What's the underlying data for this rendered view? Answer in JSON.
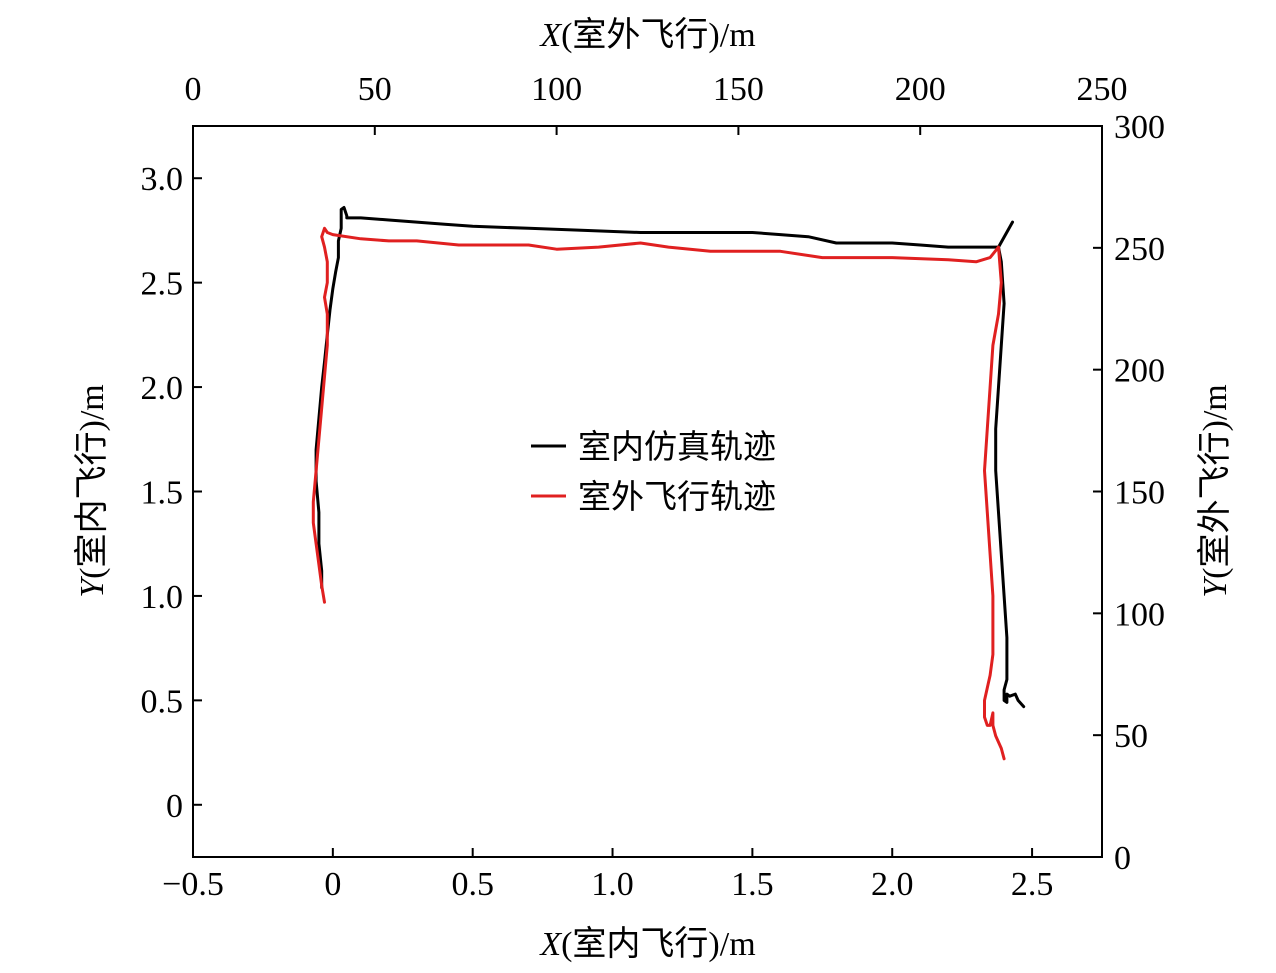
{
  "chart_data": {
    "type": "line",
    "axes": {
      "bottom": {
        "label_var": "X",
        "label_rest": "(室内飞行)/m",
        "range": [
          -0.5,
          2.75
        ],
        "ticks": [
          -0.5,
          0,
          0.5,
          1.0,
          1.5,
          2.0,
          2.5
        ],
        "tick_labels": [
          "−0.5",
          "0",
          "0.5",
          "1.0",
          "1.5",
          "2.0",
          "2.5"
        ]
      },
      "left": {
        "label_var": "Y",
        "label_rest": "(室内飞行)/m",
        "range": [
          -0.25,
          3.25
        ],
        "ticks": [
          0,
          0.5,
          1.0,
          1.5,
          2.0,
          2.5,
          3.0
        ],
        "tick_labels": [
          "0",
          "0.5",
          "1.0",
          "1.5",
          "2.0",
          "2.5",
          "3.0"
        ]
      },
      "top": {
        "label_var": "X",
        "label_rest": "(室外飞行)/m",
        "range": [
          0,
          250
        ],
        "ticks": [
          0,
          50,
          100,
          150,
          200,
          250
        ],
        "tick_labels": [
          "0",
          "50",
          "100",
          "150",
          "200",
          "250"
        ]
      },
      "right": {
        "label_var": "Y",
        "label_rest": "(室外飞行)/m",
        "range": [
          0,
          300
        ],
        "ticks": [
          0,
          50,
          100,
          150,
          200,
          250,
          300
        ],
        "tick_labels": [
          "0",
          "50",
          "100",
          "150",
          "200",
          "250",
          "300"
        ]
      }
    },
    "legend_position": "center",
    "grid": false,
    "series": [
      {
        "name": "室内仿真轨迹",
        "color": "#000000",
        "axes": "bottom-left",
        "x": [
          -0.04,
          -0.04,
          -0.05,
          -0.05,
          -0.06,
          -0.06,
          -0.05,
          -0.04,
          -0.03,
          -0.02,
          -0.01,
          0.0,
          0.01,
          0.02,
          0.02,
          0.03,
          0.03,
          0.03,
          0.04,
          0.05,
          0.05,
          0.1,
          0.2,
          0.3,
          0.4,
          0.5,
          0.7,
          0.9,
          1.1,
          1.3,
          1.5,
          1.6,
          1.7,
          1.8,
          2.0,
          2.1,
          2.2,
          2.3,
          2.38,
          2.43,
          2.38,
          2.39,
          2.4,
          2.39,
          2.38,
          2.37,
          2.37,
          2.38,
          2.39,
          2.4,
          2.41,
          2.41,
          2.41,
          2.4,
          2.4,
          2.4,
          2.41,
          2.41,
          2.42,
          2.44,
          2.45,
          2.47
        ],
        "y": [
          1.04,
          1.12,
          1.25,
          1.4,
          1.55,
          1.7,
          1.85,
          2.0,
          2.12,
          2.25,
          2.37,
          2.47,
          2.55,
          2.62,
          2.7,
          2.76,
          2.83,
          2.85,
          2.86,
          2.82,
          2.81,
          2.81,
          2.8,
          2.79,
          2.78,
          2.77,
          2.76,
          2.75,
          2.74,
          2.74,
          2.74,
          2.73,
          2.72,
          2.69,
          2.69,
          2.68,
          2.67,
          2.67,
          2.67,
          2.79,
          2.67,
          2.6,
          2.4,
          2.2,
          2.0,
          1.8,
          1.6,
          1.4,
          1.2,
          1.0,
          0.8,
          0.7,
          0.6,
          0.55,
          0.52,
          0.5,
          0.49,
          0.53,
          0.52,
          0.53,
          0.5,
          0.47
        ]
      },
      {
        "name": "室外飞行轨迹",
        "color": "#e02020",
        "axes": "bottom-left",
        "x": [
          -0.03,
          -0.04,
          -0.05,
          -0.06,
          -0.07,
          -0.07,
          -0.06,
          -0.05,
          -0.04,
          -0.03,
          -0.02,
          -0.02,
          -0.03,
          -0.02,
          -0.02,
          -0.03,
          -0.04,
          -0.03,
          -0.02,
          0.0,
          0.1,
          0.2,
          0.3,
          0.45,
          0.55,
          0.7,
          0.8,
          0.95,
          1.1,
          1.2,
          1.35,
          1.5,
          1.6,
          1.75,
          2.0,
          2.2,
          2.3,
          2.35,
          2.38,
          2.39,
          2.38,
          2.36,
          2.35,
          2.34,
          2.33,
          2.34,
          2.35,
          2.36,
          2.36,
          2.36,
          2.35,
          2.34,
          2.33,
          2.33,
          2.34,
          2.35,
          2.36,
          2.36,
          2.37,
          2.38,
          2.39,
          2.4
        ],
        "y": [
          0.97,
          1.05,
          1.15,
          1.25,
          1.35,
          1.45,
          1.6,
          1.75,
          1.9,
          2.05,
          2.2,
          2.35,
          2.43,
          2.5,
          2.6,
          2.67,
          2.72,
          2.76,
          2.74,
          2.73,
          2.71,
          2.7,
          2.7,
          2.68,
          2.68,
          2.68,
          2.66,
          2.67,
          2.69,
          2.67,
          2.65,
          2.65,
          2.65,
          2.62,
          2.62,
          2.61,
          2.6,
          2.62,
          2.67,
          2.5,
          2.35,
          2.2,
          2.0,
          1.8,
          1.6,
          1.4,
          1.2,
          1.0,
          0.85,
          0.72,
          0.62,
          0.56,
          0.5,
          0.42,
          0.38,
          0.38,
          0.44,
          0.38,
          0.33,
          0.3,
          0.27,
          0.22
        ]
      }
    ]
  }
}
